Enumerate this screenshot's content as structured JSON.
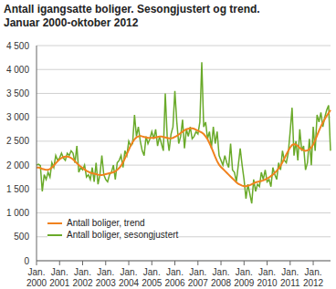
{
  "chart_data": {
    "type": "line",
    "title": "Antall igangsatte boliger. Sesongjustert og trend.",
    "subtitle": "Januar 2000-oktober 2012",
    "categories": [
      "Jan. 2000",
      null,
      null,
      null,
      null,
      null,
      null,
      null,
      null,
      null,
      null,
      null,
      "Jan. 2001",
      null,
      null,
      null,
      null,
      null,
      null,
      null,
      null,
      null,
      null,
      null,
      "Jan. 2002",
      null,
      null,
      null,
      null,
      null,
      null,
      null,
      null,
      null,
      null,
      null,
      "Jan. 2003",
      null,
      null,
      null,
      null,
      null,
      null,
      null,
      null,
      null,
      null,
      null,
      "Jan. 2004",
      null,
      null,
      null,
      null,
      null,
      null,
      null,
      null,
      null,
      null,
      null,
      "Jan. 2005",
      null,
      null,
      null,
      null,
      null,
      null,
      null,
      null,
      null,
      null,
      null,
      "Jan. 2006",
      null,
      null,
      null,
      null,
      null,
      null,
      null,
      null,
      null,
      null,
      null,
      "Jan. 2007",
      null,
      null,
      null,
      null,
      null,
      null,
      null,
      null,
      null,
      null,
      null,
      "Jan. 2008",
      null,
      null,
      null,
      null,
      null,
      null,
      null,
      null,
      null,
      null,
      null,
      "Jan. 2009",
      null,
      null,
      null,
      null,
      null,
      null,
      null,
      null,
      null,
      null,
      null,
      "Jan. 2010",
      null,
      null,
      null,
      null,
      null,
      null,
      null,
      null,
      null,
      null,
      null,
      "Jan. 2011",
      null,
      null,
      null,
      null,
      null,
      null,
      null,
      null,
      null,
      null,
      null,
      "Jan. 2012",
      null,
      null,
      null,
      null,
      null,
      null,
      null,
      null,
      null
    ],
    "series": [
      {
        "name": "Antall boliger, trend",
        "color": "#f0821e",
        "values": [
          1950,
          1950,
          1940,
          1920,
          1910,
          1900,
          1900,
          1920,
          1950,
          1990,
          2040,
          2080,
          2120,
          2150,
          2170,
          2180,
          2180,
          2170,
          2150,
          2120,
          2080,
          2040,
          2000,
          1970,
          1940,
          1910,
          1880,
          1860,
          1840,
          1830,
          1820,
          1810,
          1800,
          1790,
          1790,
          1800,
          1810,
          1820,
          1830,
          1840,
          1850,
          1870,
          1900,
          1940,
          1990,
          2060,
          2140,
          2230,
          2320,
          2410,
          2480,
          2540,
          2580,
          2600,
          2610,
          2600,
          2590,
          2580,
          2570,
          2570,
          2570,
          2570,
          2580,
          2590,
          2600,
          2600,
          2590,
          2580,
          2570,
          2560,
          2560,
          2570,
          2590,
          2610,
          2640,
          2670,
          2700,
          2730,
          2750,
          2760,
          2770,
          2770,
          2760,
          2740,
          2720,
          2700,
          2680,
          2650,
          2600,
          2540,
          2460,
          2370,
          2270,
          2170,
          2080,
          2010,
          1960,
          1920,
          1880,
          1840,
          1800,
          1760,
          1720,
          1680,
          1640,
          1610,
          1590,
          1570,
          1560,
          1560,
          1570,
          1580,
          1600,
          1620,
          1640,
          1650,
          1660,
          1670,
          1680,
          1700,
          1720,
          1740,
          1770,
          1800,
          1840,
          1880,
          1930,
          1990,
          2060,
          2140,
          2220,
          2300,
          2370,
          2420,
          2440,
          2430,
          2400,
          2360,
          2330,
          2310,
          2300,
          2310,
          2330,
          2370,
          2430,
          2520,
          2620,
          2720,
          2810,
          2890,
          2960,
          3030,
          3090,
          3150
        ]
      },
      {
        "name": "Antall boliger, sesongjustert",
        "color": "#6aaa2a",
        "values": [
          2000,
          2020,
          1990,
          1450,
          1800,
          1700,
          1850,
          1750,
          2050,
          1950,
          2200,
          2100,
          2150,
          2250,
          2150,
          2100,
          2250,
          2200,
          2300,
          2250,
          2050,
          2400,
          1850,
          1950,
          1900,
          2000,
          1750,
          1800,
          1700,
          1950,
          1650,
          2050,
          1600,
          1800,
          2200,
          1800,
          1700,
          1650,
          1800,
          1850,
          2000,
          1700,
          2050,
          2100,
          2200,
          1950,
          2300,
          2200,
          2500,
          2400,
          2450,
          3050,
          2600,
          2800,
          2500,
          2300,
          2200,
          2600,
          2450,
          2550,
          2700,
          2550,
          2750,
          2400,
          2600,
          2450,
          2300,
          3500,
          2600,
          2300,
          2650,
          2800,
          3550,
          2900,
          2450,
          2600,
          2950,
          2350,
          2750,
          2600,
          2800,
          2550,
          2600,
          2700,
          2650,
          2900,
          4150,
          2800,
          2900,
          2550,
          2700,
          2350,
          2800,
          2450,
          2700,
          2200,
          2100,
          2000,
          2200,
          2050,
          1950,
          2450,
          1900,
          1850,
          1650,
          2000,
          2350,
          2000,
          1700,
          1300,
          1600,
          1400,
          1200,
          1700,
          1450,
          1600,
          1550,
          1850,
          1700,
          1900,
          1650,
          1700,
          1550,
          1950,
          1800,
          1700,
          2050,
          1900,
          2300,
          2100,
          2050,
          2250,
          2700,
          3200,
          2200,
          2500,
          2100,
          2750,
          2300,
          2400,
          1900,
          2050,
          2550,
          2000,
          2800,
          2300,
          3050,
          2900,
          3100,
          2800,
          3000,
          3150,
          3250,
          2300
        ]
      }
    ],
    "ylim": [
      0,
      4500
    ],
    "yticks": [
      0,
      500,
      {
        "value": 1000,
        "label": "1 000"
      },
      {
        "value": 1500,
        "label": "1 500"
      },
      {
        "value": 2000,
        "label": "2 000"
      },
      {
        "value": 2500,
        "label": "2 500"
      },
      {
        "value": 3000,
        "label": "3 000"
      },
      {
        "value": 3500,
        "label": "3 500"
      },
      {
        "value": 4000,
        "label": "4 000"
      },
      {
        "value": 4500,
        "label": "4 500"
      }
    ],
    "grid": true,
    "legend": "lower left"
  }
}
